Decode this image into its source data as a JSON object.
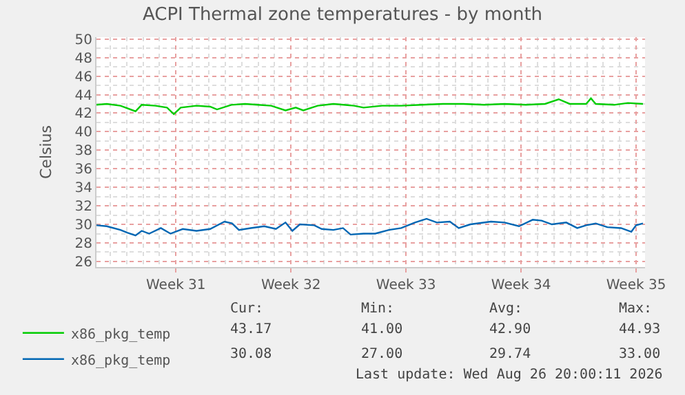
{
  "chart_data": {
    "type": "line",
    "title": "ACPI Thermal zone temperatures - by month",
    "ylabel": "Celsius",
    "xlim": [
      "2026-07-22T04:00",
      "2026-08-24T13:00"
    ],
    "xticks": [
      {
        "value": "2026-07-27",
        "label": "Week 31"
      },
      {
        "value": "2026-08-03",
        "label": "Week 32"
      },
      {
        "value": "2026-08-10",
        "label": "Week 33"
      },
      {
        "value": "2026-08-17",
        "label": "Week 34"
      },
      {
        "value": "2026-08-24",
        "label": "Week 35"
      }
    ],
    "ylim": [
      25.4,
      50.2
    ],
    "yticks": [
      26,
      28,
      30,
      32,
      34,
      36,
      38,
      40,
      42,
      44,
      46,
      48,
      50
    ],
    "grid": true,
    "legend": "bottom left",
    "marker": "none",
    "line_style": "solid",
    "series": [
      {
        "name": "x86_pkg_temp",
        "color": "#00cc00",
        "x": [
          "2026-07-22T04:00",
          "2026-07-22T19:00",
          "2026-07-23T15:00",
          "2026-07-24T13:00",
          "2026-07-24T22:00",
          "2026-07-25T18:00",
          "2026-07-26T11:00",
          "2026-07-26T21:00",
          "2026-07-27T07:00",
          "2026-07-28T06:00",
          "2026-07-29T02:00",
          "2026-07-29T12:00",
          "2026-07-30T09:00",
          "2026-07-31T05:00",
          "2026-07-31T23:00",
          "2026-08-01T19:00",
          "2026-08-02T16:00",
          "2026-08-03T07:00",
          "2026-08-03T18:00",
          "2026-08-04T15:00",
          "2026-08-05T14:00",
          "2026-08-06T20:00",
          "2026-08-07T10:00",
          "2026-08-08T13:00",
          "2026-08-09T17:00",
          "2026-08-10T23:00",
          "2026-08-12T06:00",
          "2026-08-13T12:00",
          "2026-08-14T18:00",
          "2026-08-16T00:00",
          "2026-08-17T07:00",
          "2026-08-18T11:00",
          "2026-08-19T07:00",
          "2026-08-19T23:00",
          "2026-08-20T23:00",
          "2026-08-21T06:00",
          "2026-08-21T13:00",
          "2026-08-22T16:00",
          "2026-08-23T12:00",
          "2026-08-24T10:00"
        ],
        "values": [
          42.9,
          43.0,
          42.8,
          42.2,
          42.9,
          42.8,
          42.6,
          41.9,
          42.6,
          42.8,
          42.7,
          42.4,
          42.9,
          43.0,
          42.9,
          42.8,
          42.3,
          42.6,
          42.3,
          42.8,
          43.0,
          42.8,
          42.6,
          42.8,
          42.8,
          42.9,
          43.0,
          43.0,
          42.9,
          43.0,
          42.9,
          43.0,
          43.5,
          43.0,
          43.0,
          43.6,
          43.0,
          42.9,
          43.1,
          43.0
        ]
      },
      {
        "name": "x86_pkg_temp",
        "color": "#0066b3",
        "x": [
          "2026-07-22T04:00",
          "2026-07-22T19:00",
          "2026-07-23T15:00",
          "2026-07-24T01:00",
          "2026-07-24T13:00",
          "2026-07-24T22:00",
          "2026-07-25T09:00",
          "2026-07-26T02:00",
          "2026-07-26T16:00",
          "2026-07-27T10:00",
          "2026-07-28T06:00",
          "2026-07-29T02:00",
          "2026-07-29T23:00",
          "2026-07-30T10:00",
          "2026-07-30T20:00",
          "2026-07-31T13:00",
          "2026-08-01T09:00",
          "2026-08-02T02:00",
          "2026-08-02T16:00",
          "2026-08-03T02:00",
          "2026-08-03T13:00",
          "2026-08-04T10:00",
          "2026-08-04T21:00",
          "2026-08-05T14:00",
          "2026-08-06T04:00",
          "2026-08-06T15:00",
          "2026-08-07T10:00",
          "2026-08-08T03:00",
          "2026-08-08T23:00",
          "2026-08-09T17:00",
          "2026-08-10T13:00",
          "2026-08-11T06:00",
          "2026-08-11T21:00",
          "2026-08-12T16:00",
          "2026-08-13T05:00",
          "2026-08-13T22:00",
          "2026-08-15T04:00",
          "2026-08-16T00:00",
          "2026-08-16T21:00",
          "2026-08-17T17:00",
          "2026-08-18T06:00",
          "2026-08-18T21:00",
          "2026-08-19T18:00",
          "2026-08-20T10:00",
          "2026-08-20T23:00",
          "2026-08-21T13:00",
          "2026-08-22T06:00",
          "2026-08-23T02:00",
          "2026-08-23T17:00",
          "2026-08-24T00:00",
          "2026-08-24T10:00"
        ],
        "values": [
          29.9,
          29.8,
          29.4,
          29.1,
          28.8,
          29.3,
          29.0,
          29.6,
          29.0,
          29.5,
          29.3,
          29.5,
          30.3,
          30.1,
          29.4,
          29.6,
          29.8,
          29.5,
          30.2,
          29.3,
          30.0,
          29.9,
          29.5,
          29.4,
          29.6,
          28.9,
          29.0,
          29.0,
          29.4,
          29.6,
          30.2,
          30.6,
          30.2,
          30.3,
          29.6,
          30.0,
          30.3,
          30.2,
          29.8,
          30.5,
          30.4,
          30.0,
          30.2,
          29.6,
          29.9,
          30.1,
          29.7,
          29.6,
          29.2,
          29.9,
          30.1
        ]
      }
    ],
    "annotations": [
      "Cur:",
      "Min:",
      "Avg:",
      "Max:",
      "43.17",
      "41.00",
      "42.90",
      "44.93",
      "30.08",
      "27.00",
      "29.74",
      "33.00",
      "Last update: Wed Aug 26 20:00:11 2026"
    ]
  }
}
